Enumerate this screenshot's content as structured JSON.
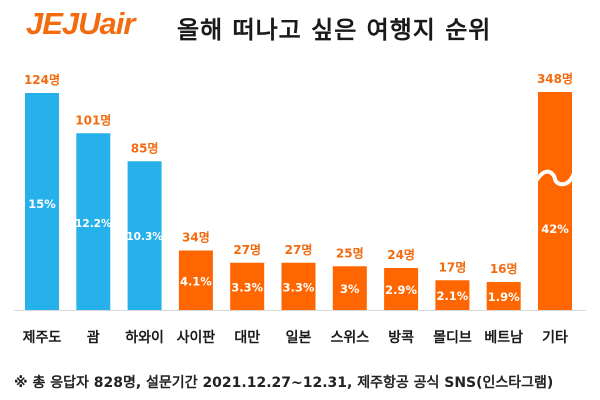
{
  "header": {
    "logo_text": "JEJUair",
    "title": "올해 떠나고 싶은 여행지 순위"
  },
  "colors": {
    "top3": "#26b1ea",
    "others": "#ff6600",
    "value_label": "#f26b0f",
    "break_line": "#ffffff"
  },
  "chart_data": {
    "type": "bar",
    "title": "올해 떠나고 싶은 여행지 순위",
    "xlabel": "",
    "ylabel": "",
    "unit": "명",
    "grid": false,
    "legend": "none",
    "axis_broken_for": "기타",
    "categories": [
      "제주도",
      "괌",
      "하와이",
      "사이판",
      "대만",
      "일본",
      "스위스",
      "방콕",
      "몰디브",
      "베트남",
      "기타"
    ],
    "values": [
      124,
      101,
      85,
      34,
      27,
      27,
      25,
      24,
      17,
      16,
      348
    ],
    "value_labels": [
      "124명",
      "101명",
      "85명",
      "34명",
      "27명",
      "27명",
      "25명",
      "24명",
      "17명",
      "16명",
      "348명"
    ],
    "percent_labels": [
      "15%",
      "12.2%",
      "10.3%",
      "4.1%",
      "3.3%",
      "3.3%",
      "3%",
      "2.9%",
      "2.1%",
      "1.9%",
      "42%"
    ],
    "highlight_group": [
      "제주도",
      "괌",
      "하와이"
    ]
  },
  "footnote": "※ 총 응답자 828명, 설문기간 2021.12.27~12.31, 제주항공 공식 SNS(인스타그램)"
}
